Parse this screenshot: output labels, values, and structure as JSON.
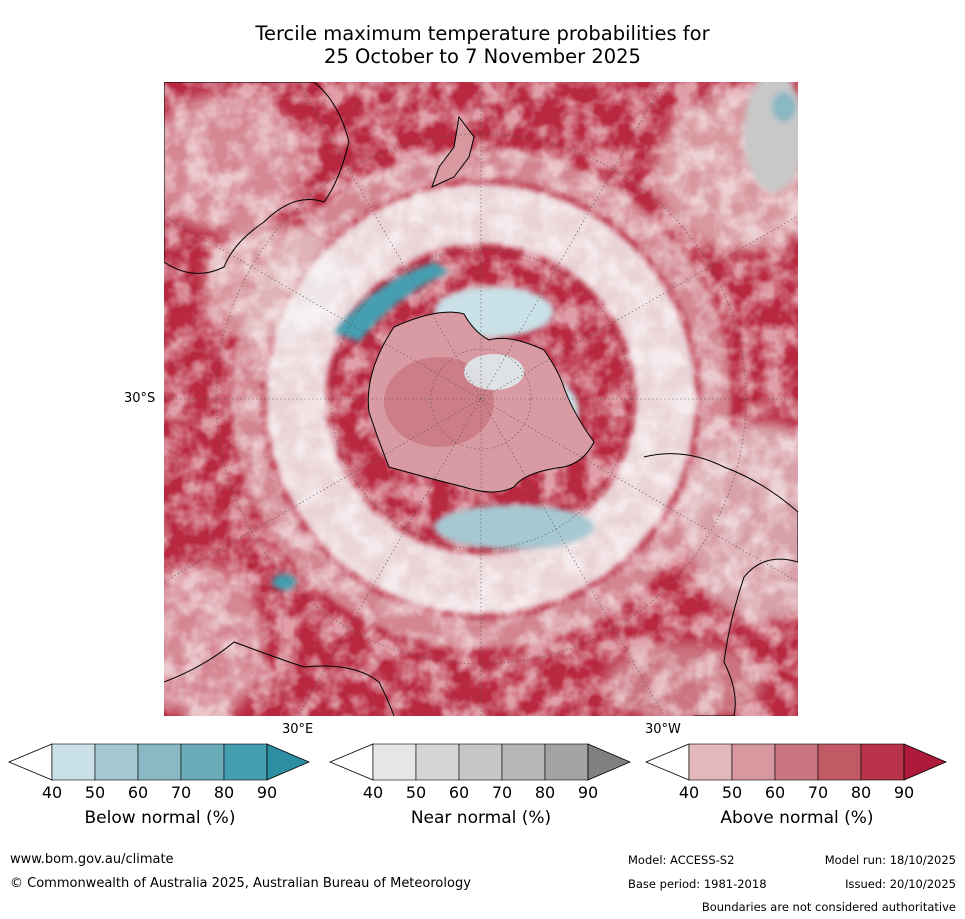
{
  "title_line1": "Tercile maximum temperature probabilities for",
  "title_line2": "25 October to 7 November 2025",
  "map": {
    "lat_label": "30°S",
    "lon_label_east": "30°E",
    "lon_label_west": "30°W"
  },
  "colorbars": [
    {
      "label": "Below normal (%)",
      "ticks": [
        "40",
        "50",
        "60",
        "70",
        "80",
        "90"
      ],
      "colors": [
        "#ffffff",
        "#c9e1e7",
        "#a6c9d1",
        "#8ab8c4",
        "#6bacba",
        "#459fb0",
        "#2d8ea2"
      ]
    },
    {
      "label": "Near normal (%)",
      "ticks": [
        "40",
        "50",
        "60",
        "70",
        "80",
        "90"
      ],
      "colors": [
        "#ffffff",
        "#e6e6e6",
        "#d6d6d6",
        "#c6c6c6",
        "#b6b6b6",
        "#a3a3a3",
        "#808080"
      ]
    },
    {
      "label": "Above normal (%)",
      "ticks": [
        "40",
        "50",
        "60",
        "70",
        "80",
        "90"
      ],
      "colors": [
        "#ffffff",
        "#e3b8bd",
        "#d8989f",
        "#cb7580",
        "#c25a66",
        "#b8334a",
        "#ad1a3a"
      ]
    }
  ],
  "footer": {
    "url": "www.bom.gov.au/climate",
    "copyright": "© Commonwealth of Australia 2025, Australian Bureau of Meteorology",
    "model": "Model: ACCESS-S2",
    "model_run": "Model run: 18/10/2025",
    "base_period": "Base period: 1981-2018",
    "issued": "Issued: 20/10/2025",
    "disclaimer": "Boundaries are not considered authoritative"
  }
}
